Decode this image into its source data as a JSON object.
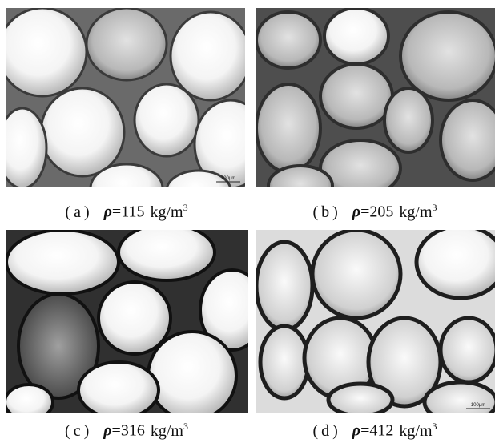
{
  "panels": [
    {
      "label": "(a)",
      "symbol": "ρ",
      "relation": "=",
      "value": 115,
      "unit": "kg/m",
      "unit_power": "3",
      "scale_bar": "100μm"
    },
    {
      "label": "(b)",
      "symbol": "ρ",
      "relation": "=",
      "value": 205,
      "unit": "kg/m",
      "unit_power": "3"
    },
    {
      "label": "(c)",
      "symbol": "ρ",
      "relation": "=",
      "value": 316,
      "unit": "kg/m",
      "unit_power": "3"
    },
    {
      "label": "(d)",
      "symbol": "ρ",
      "relation": "=",
      "value": 412,
      "unit": "kg/m",
      "unit_power": "3",
      "scale_bar": "100μm"
    }
  ]
}
